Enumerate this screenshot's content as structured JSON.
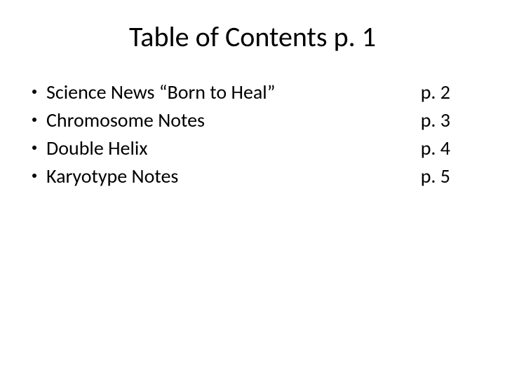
{
  "title": "Table of Contents p. 1",
  "entries": [
    {
      "label": "Science News “Born to Heal”",
      "page": "p. 2"
    },
    {
      "label": "Chromosome Notes",
      "page": "p. 3"
    },
    {
      "label": "Double Helix",
      "page": "p. 4"
    },
    {
      "label": "Karyotype Notes",
      "page": "p. 5"
    }
  ],
  "style": {
    "background_color": "#ffffff",
    "text_color": "#000000",
    "bullet_color": "#000000",
    "title_fontsize": 40,
    "body_fontsize": 28,
    "font_family": "Calibri"
  }
}
